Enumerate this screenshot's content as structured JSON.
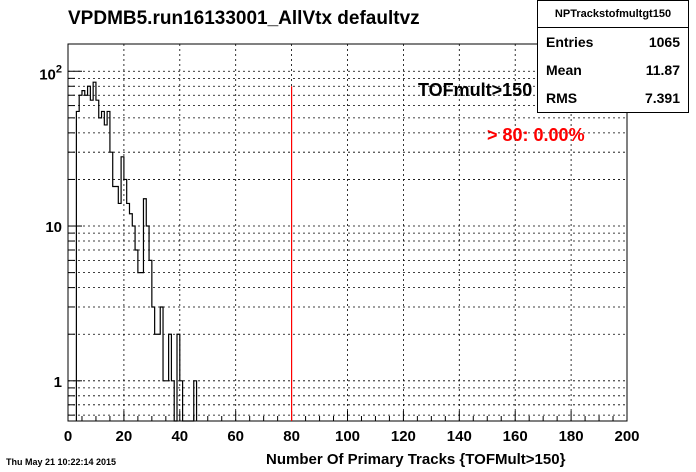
{
  "title": "VPDMB5.run16133001_AllVtx defaultvz",
  "stats": {
    "name": "NPTrackstofmultgt150",
    "entries_label": "Entries",
    "entries": "1065",
    "mean_label": "Mean",
    "mean": "11.87",
    "rms_label": "RMS",
    "rms": "7.391"
  },
  "annotations": {
    "tof": "TOFmult>150",
    "ratio": "> 80: 0.00%"
  },
  "footer": "Thu May 21 10:22:14 2015",
  "colors": {
    "cut_line": "#ff0000",
    "ratio_text": "#ff0000",
    "histogram": "#000000"
  },
  "chart_data": {
    "type": "bar",
    "xlabel": "Number Of Primary Tracks {TOFMult>150}",
    "ylabel": "",
    "xlim": [
      0,
      200
    ],
    "ylim": [
      0.55,
      150
    ],
    "log_y": true,
    "grid": true,
    "cut_x": 80,
    "xticks": [
      "0",
      "20",
      "40",
      "60",
      "80",
      "100",
      "120",
      "140",
      "160",
      "180",
      "200"
    ],
    "yticks": [
      "1",
      "10",
      "10^2"
    ],
    "bin_width": 1,
    "x": [
      3,
      4,
      5,
      6,
      7,
      8,
      9,
      10,
      11,
      12,
      13,
      14,
      15,
      16,
      17,
      18,
      19,
      20,
      21,
      22,
      23,
      24,
      25,
      26,
      27,
      28,
      29,
      30,
      31,
      32,
      33,
      34,
      35,
      36,
      37,
      38,
      39,
      40,
      41,
      42,
      43,
      44,
      45
    ],
    "values": [
      55,
      70,
      75,
      70,
      80,
      65,
      85,
      65,
      50,
      55,
      45,
      55,
      30,
      18,
      18,
      14,
      28,
      20,
      14,
      12,
      10,
      7,
      5,
      5,
      15,
      10,
      6,
      3,
      2,
      2,
      3,
      1,
      1,
      2,
      1,
      0,
      2,
      1,
      0,
      0,
      0,
      0,
      1
    ]
  }
}
